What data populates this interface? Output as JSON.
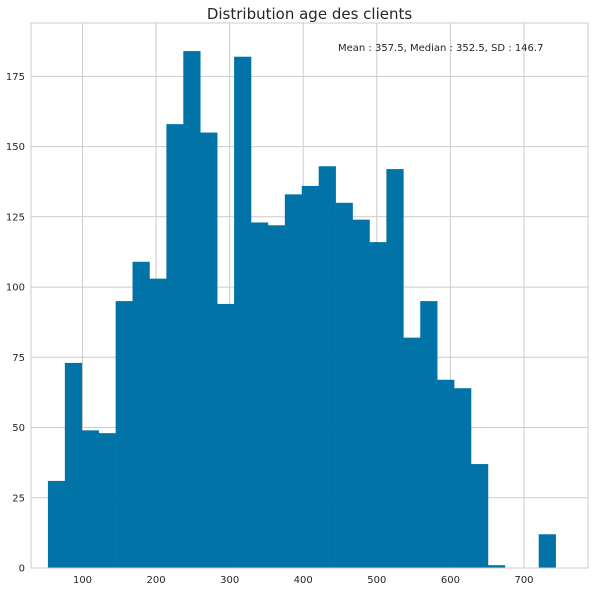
{
  "chart_data": {
    "type": "bar",
    "title": "Distribution age des clients",
    "xlabel": "",
    "ylabel": "",
    "annotation": "Mean : 357.5, Median :  352.5, SD :  146.7",
    "xlim": [
      30,
      787
    ],
    "ylim": [
      0,
      194
    ],
    "x_ticks": [
      100,
      200,
      300,
      400,
      500,
      600,
      700
    ],
    "y_ticks": [
      0,
      25,
      50,
      75,
      100,
      125,
      150,
      175
    ],
    "grid": true,
    "bar_color": "#0173a6",
    "bins": [
      {
        "x0": 53,
        "x1": 76,
        "count": 31
      },
      {
        "x0": 76,
        "x1": 99,
        "count": 73
      },
      {
        "x0": 99,
        "x1": 122,
        "count": 49
      },
      {
        "x0": 122,
        "x1": 145,
        "count": 48
      },
      {
        "x0": 145,
        "x1": 168,
        "count": 95
      },
      {
        "x0": 168,
        "x1": 191,
        "count": 109
      },
      {
        "x0": 191,
        "x1": 214,
        "count": 103
      },
      {
        "x0": 214,
        "x1": 237,
        "count": 158
      },
      {
        "x0": 237,
        "x1": 260,
        "count": 184
      },
      {
        "x0": 260,
        "x1": 283,
        "count": 155
      },
      {
        "x0": 283,
        "x1": 306,
        "count": 94
      },
      {
        "x0": 306,
        "x1": 329,
        "count": 182
      },
      {
        "x0": 329,
        "x1": 352,
        "count": 123
      },
      {
        "x0": 352,
        "x1": 375,
        "count": 122
      },
      {
        "x0": 375,
        "x1": 398,
        "count": 133
      },
      {
        "x0": 398,
        "x1": 421,
        "count": 136
      },
      {
        "x0": 421,
        "x1": 444,
        "count": 143
      },
      {
        "x0": 444,
        "x1": 467,
        "count": 130
      },
      {
        "x0": 467,
        "x1": 490,
        "count": 124
      },
      {
        "x0": 490,
        "x1": 513,
        "count": 116
      },
      {
        "x0": 513,
        "x1": 536,
        "count": 142
      },
      {
        "x0": 536,
        "x1": 559,
        "count": 82
      },
      {
        "x0": 559,
        "x1": 582,
        "count": 95
      },
      {
        "x0": 582,
        "x1": 605,
        "count": 67
      },
      {
        "x0": 605,
        "x1": 628,
        "count": 64
      },
      {
        "x0": 628,
        "x1": 651,
        "count": 37
      },
      {
        "x0": 651,
        "x1": 674,
        "count": 1
      },
      {
        "x0": 674,
        "x1": 697,
        "count": 0
      },
      {
        "x0": 697,
        "x1": 720,
        "count": 0
      },
      {
        "x0": 720,
        "x1": 743,
        "count": 12
      }
    ]
  }
}
